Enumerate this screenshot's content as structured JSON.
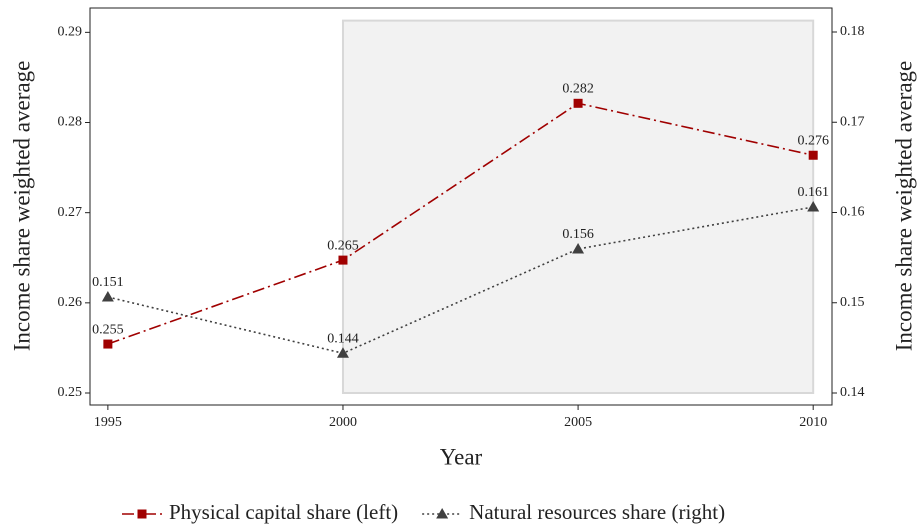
{
  "chart_data": {
    "type": "line",
    "x_label": "Year",
    "y_label": "Income share weighted average",
    "y2_label": "Income share weighted average",
    "x": [
      1995,
      2000,
      2005,
      2010
    ],
    "series": [
      {
        "name": "Physical capital share (left)",
        "color": "#a00000",
        "dash": "dashdot",
        "marker": "square",
        "axis": "y",
        "values": [
          0.25543,
          0.26474,
          0.28213,
          0.27637
        ],
        "value_labels": [
          "0.255",
          "0.265",
          "0.282",
          "0.276"
        ]
      },
      {
        "name": "Natural resources share (right)",
        "color": "#404040",
        "dash": "dotted",
        "marker": "triangle",
        "axis": "y2",
        "values": [
          0.15064,
          0.1444,
          0.15596,
          0.16061
        ],
        "value_labels": [
          "0.151",
          "0.144",
          "0.156",
          "0.161"
        ]
      }
    ],
    "xlim": [
      1994.62,
      2010.4
    ],
    "xticks": [
      1995,
      2000,
      2005,
      2010
    ],
    "ylim": [
      0.24867,
      0.2927
    ],
    "yticks": [
      0.25,
      0.26,
      0.27,
      0.28,
      0.29
    ],
    "y2lim": [
      0.13867,
      0.18266
    ],
    "y2ticks": [
      0.14,
      0.15,
      0.16,
      0.17,
      0.18
    ],
    "shaded_region": {
      "x": [
        2000,
        2010
      ],
      "y": [
        0.25,
        0.2913
      ],
      "color": "#f2f2f2"
    },
    "legend": "bottom"
  }
}
